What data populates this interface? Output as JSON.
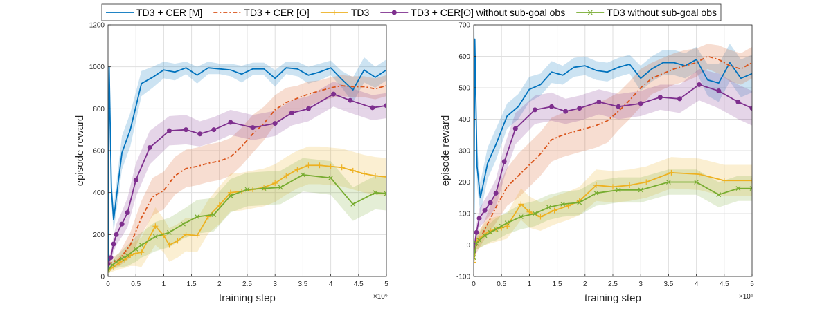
{
  "legend": {
    "entries": [
      {
        "label": "TD3 + CER [M]",
        "color": "#0072BD",
        "dash": "",
        "marker": "none"
      },
      {
        "label": "TD3 + CER [O]",
        "color": "#D95319",
        "dash": "6,3,2,3",
        "marker": "none"
      },
      {
        "label": "TD3",
        "color": "#EDB120",
        "dash": "",
        "marker": "plus"
      },
      {
        "label": "TD3 + CER[O] without sub-goal obs",
        "color": "#7E2F8E",
        "dash": "",
        "marker": "circle"
      },
      {
        "label": "TD3 without sub-goal obs",
        "color": "#77AC30",
        "dash": "",
        "marker": "x"
      }
    ]
  },
  "chart_data": [
    {
      "type": "line",
      "xlabel": "training step",
      "ylabel": "episode reward",
      "x_exponent_label": "×10⁶",
      "xlim": [
        0,
        5
      ],
      "ylim": [
        0,
        1200
      ],
      "xticks": [
        0,
        0.5,
        1,
        1.5,
        2,
        2.5,
        3,
        3.5,
        4,
        4.5,
        5
      ],
      "yticks": [
        0,
        200,
        400,
        600,
        800,
        1000,
        1200
      ],
      "series": [
        {
          "name": "TD3 + CER [M]",
          "color": "#0072BD",
          "x": [
            0,
            0.02,
            0.06,
            0.1,
            0.25,
            0.4,
            0.6,
            0.8,
            1.0,
            1.2,
            1.4,
            1.6,
            1.8,
            2.0,
            2.2,
            2.4,
            2.6,
            2.8,
            3.0,
            3.2,
            3.4,
            3.6,
            3.8,
            4.0,
            4.2,
            4.4,
            4.6,
            4.8,
            5.0
          ],
          "y": [
            30,
            1000,
            420,
            270,
            590,
            700,
            920,
            950,
            985,
            975,
            995,
            960,
            995,
            990,
            985,
            965,
            990,
            990,
            945,
            995,
            990,
            960,
            975,
            995,
            940,
            890,
            985,
            950,
            985
          ],
          "band": [
            15,
            20,
            60,
            60,
            80,
            80,
            60,
            50,
            40,
            40,
            30,
            40,
            30,
            25,
            30,
            40,
            30,
            30,
            40,
            30,
            35,
            40,
            40,
            35,
            40,
            60,
            60,
            50,
            50
          ]
        },
        {
          "name": "TD3 + CER [O]",
          "color": "#D95319",
          "x": [
            0,
            0.2,
            0.4,
            0.6,
            0.8,
            1.0,
            1.2,
            1.4,
            1.6,
            1.8,
            2.0,
            2.2,
            2.4,
            2.6,
            2.8,
            3.0,
            3.2,
            3.4,
            3.6,
            3.8,
            4.0,
            4.2,
            4.4,
            4.6,
            4.8,
            5.0
          ],
          "y": [
            60,
            80,
            150,
            280,
            380,
            410,
            480,
            515,
            525,
            540,
            550,
            570,
            620,
            680,
            730,
            795,
            830,
            850,
            870,
            885,
            900,
            910,
            905,
            905,
            895,
            910
          ],
          "band": [
            20,
            30,
            60,
            80,
            90,
            90,
            90,
            90,
            90,
            90,
            90,
            90,
            90,
            90,
            80,
            70,
            70,
            60,
            60,
            50,
            50,
            50,
            50,
            50,
            50,
            50
          ]
        },
        {
          "name": "TD3",
          "color": "#EDB120",
          "x": [
            0,
            0.1,
            0.2,
            0.3,
            0.4,
            0.5,
            0.6,
            0.85,
            1.0,
            1.1,
            1.25,
            1.4,
            1.6,
            1.8,
            2.0,
            2.2,
            2.4,
            2.6,
            2.8,
            3.0,
            3.2,
            3.4,
            3.6,
            3.8,
            4.0,
            4.2,
            4.4,
            4.6,
            4.8,
            5.0
          ],
          "y": [
            30,
            45,
            65,
            80,
            100,
            110,
            115,
            240,
            195,
            150,
            170,
            200,
            195,
            285,
            340,
            400,
            405,
            415,
            425,
            445,
            480,
            510,
            530,
            530,
            525,
            520,
            505,
            490,
            480,
            475
          ],
          "band": [
            15,
            20,
            30,
            40,
            50,
            60,
            70,
            90,
            80,
            80,
            80,
            80,
            80,
            80,
            90,
            90,
            90,
            90,
            90,
            90,
            90,
            90,
            90,
            90,
            90,
            90,
            90,
            90,
            90,
            90
          ]
        },
        {
          "name": "TD3 + CER[O] without sub-goal obs",
          "color": "#7E2F8E",
          "x": [
            0,
            0.05,
            0.1,
            0.15,
            0.25,
            0.35,
            0.5,
            0.75,
            1.1,
            1.4,
            1.65,
            1.9,
            2.2,
            2.6,
            3.0,
            3.3,
            3.6,
            4.05,
            4.35,
            4.75,
            5.0
          ],
          "y": [
            60,
            90,
            155,
            200,
            250,
            305,
            460,
            615,
            695,
            700,
            680,
            700,
            735,
            710,
            730,
            780,
            800,
            870,
            840,
            805,
            815
          ],
          "band": [
            20,
            30,
            40,
            50,
            60,
            70,
            80,
            80,
            70,
            70,
            60,
            60,
            60,
            60,
            60,
            60,
            60,
            60,
            60,
            60,
            60
          ]
        },
        {
          "name": "TD3 without sub-goal obs",
          "color": "#77AC30",
          "x": [
            0,
            0.08,
            0.15,
            0.25,
            0.35,
            0.5,
            0.6,
            0.85,
            1.1,
            1.35,
            1.6,
            1.9,
            2.2,
            2.5,
            2.8,
            3.1,
            3.5,
            4.0,
            4.4,
            4.8,
            5.0
          ],
          "y": [
            30,
            55,
            70,
            85,
            100,
            130,
            150,
            190,
            210,
            250,
            285,
            295,
            385,
            415,
            420,
            425,
            485,
            470,
            345,
            400,
            395
          ],
          "band": [
            15,
            20,
            30,
            40,
            50,
            60,
            60,
            70,
            70,
            70,
            80,
            80,
            80,
            80,
            80,
            80,
            80,
            80,
            80,
            80,
            80
          ]
        }
      ]
    },
    {
      "type": "line",
      "xlabel": "training step",
      "ylabel": "episode reward",
      "x_exponent_label": "×10⁶",
      "xlim": [
        0,
        5
      ],
      "ylim": [
        -100,
        700
      ],
      "xticks": [
        0,
        0.5,
        1,
        1.5,
        2,
        2.5,
        3,
        3.5,
        4,
        4.5,
        5
      ],
      "yticks": [
        -100,
        0,
        100,
        200,
        300,
        400,
        500,
        600,
        700
      ],
      "series": [
        {
          "name": "TD3 + CER [M]",
          "color": "#0072BD",
          "x": [
            0,
            0.02,
            0.06,
            0.12,
            0.25,
            0.4,
            0.6,
            0.8,
            1.0,
            1.2,
            1.4,
            1.6,
            1.8,
            2.0,
            2.2,
            2.4,
            2.6,
            2.8,
            3.0,
            3.2,
            3.4,
            3.6,
            3.8,
            4.0,
            4.2,
            4.4,
            4.6,
            4.8,
            5.0
          ],
          "y": [
            -20,
            655,
            250,
            150,
            260,
            320,
            410,
            440,
            495,
            510,
            550,
            540,
            565,
            570,
            555,
            550,
            565,
            575,
            530,
            560,
            580,
            580,
            570,
            590,
            525,
            515,
            580,
            530,
            545
          ],
          "band": [
            30,
            40,
            60,
            50,
            50,
            50,
            40,
            40,
            40,
            35,
            35,
            30,
            30,
            30,
            30,
            30,
            30,
            30,
            40,
            40,
            40,
            40,
            40,
            40,
            50,
            60,
            60,
            60,
            60
          ]
        },
        {
          "name": "TD3 + CER [O]",
          "color": "#D95319",
          "x": [
            0,
            0.2,
            0.4,
            0.6,
            0.8,
            1.0,
            1.2,
            1.4,
            1.6,
            1.8,
            2.0,
            2.2,
            2.4,
            2.6,
            2.8,
            3.0,
            3.2,
            3.4,
            3.6,
            3.8,
            4.0,
            4.2,
            4.4,
            4.6,
            4.8,
            5.0
          ],
          "y": [
            -20,
            50,
            120,
            185,
            220,
            255,
            290,
            335,
            350,
            360,
            370,
            380,
            395,
            425,
            460,
            500,
            530,
            545,
            560,
            570,
            580,
            600,
            590,
            570,
            560,
            580
          ],
          "band": [
            20,
            30,
            50,
            60,
            70,
            70,
            70,
            70,
            70,
            70,
            70,
            70,
            70,
            60,
            60,
            60,
            50,
            50,
            50,
            50,
            45,
            40,
            45,
            50,
            50,
            50
          ]
        },
        {
          "name": "TD3",
          "color": "#EDB120",
          "x": [
            0,
            0.05,
            0.1,
            0.2,
            0.3,
            0.4,
            0.5,
            0.6,
            0.85,
            1.0,
            1.2,
            1.45,
            1.7,
            1.9,
            2.2,
            2.5,
            2.8,
            3.1,
            3.55,
            4.05,
            4.5,
            5.0
          ],
          "y": [
            -55,
            10,
            20,
            35,
            45,
            50,
            55,
            60,
            130,
            105,
            90,
            110,
            125,
            140,
            190,
            185,
            190,
            200,
            230,
            225,
            205,
            205
          ],
          "band": [
            20,
            25,
            30,
            35,
            40,
            40,
            40,
            40,
            50,
            50,
            45,
            45,
            45,
            45,
            50,
            50,
            50,
            50,
            50,
            50,
            50,
            50
          ]
        },
        {
          "name": "TD3 + CER[O] without sub-goal obs",
          "color": "#7E2F8E",
          "x": [
            0,
            0.05,
            0.1,
            0.2,
            0.3,
            0.4,
            0.55,
            0.75,
            1.1,
            1.4,
            1.65,
            1.9,
            2.25,
            2.6,
            3.0,
            3.35,
            3.7,
            4.05,
            4.4,
            4.75,
            5.0
          ],
          "y": [
            -20,
            40,
            85,
            110,
            135,
            165,
            265,
            370,
            430,
            440,
            425,
            435,
            455,
            440,
            450,
            470,
            465,
            510,
            490,
            455,
            435
          ],
          "band": [
            20,
            25,
            30,
            35,
            40,
            45,
            50,
            50,
            45,
            45,
            40,
            40,
            40,
            40,
            40,
            40,
            45,
            50,
            55,
            55,
            55
          ]
        },
        {
          "name": "TD3 without sub-goal obs",
          "color": "#77AC30",
          "x": [
            0,
            0.05,
            0.1,
            0.2,
            0.3,
            0.4,
            0.5,
            0.6,
            0.85,
            1.1,
            1.35,
            1.6,
            1.9,
            2.2,
            2.6,
            3.0,
            3.5,
            4.0,
            4.4,
            4.75,
            5.0
          ],
          "y": [
            -40,
            5,
            15,
            30,
            40,
            50,
            60,
            70,
            90,
            100,
            120,
            130,
            135,
            165,
            175,
            175,
            200,
            200,
            160,
            180,
            180
          ],
          "band": [
            15,
            20,
            25,
            30,
            30,
            35,
            35,
            35,
            40,
            40,
            40,
            40,
            40,
            40,
            40,
            40,
            40,
            40,
            40,
            40,
            40
          ]
        }
      ]
    }
  ]
}
